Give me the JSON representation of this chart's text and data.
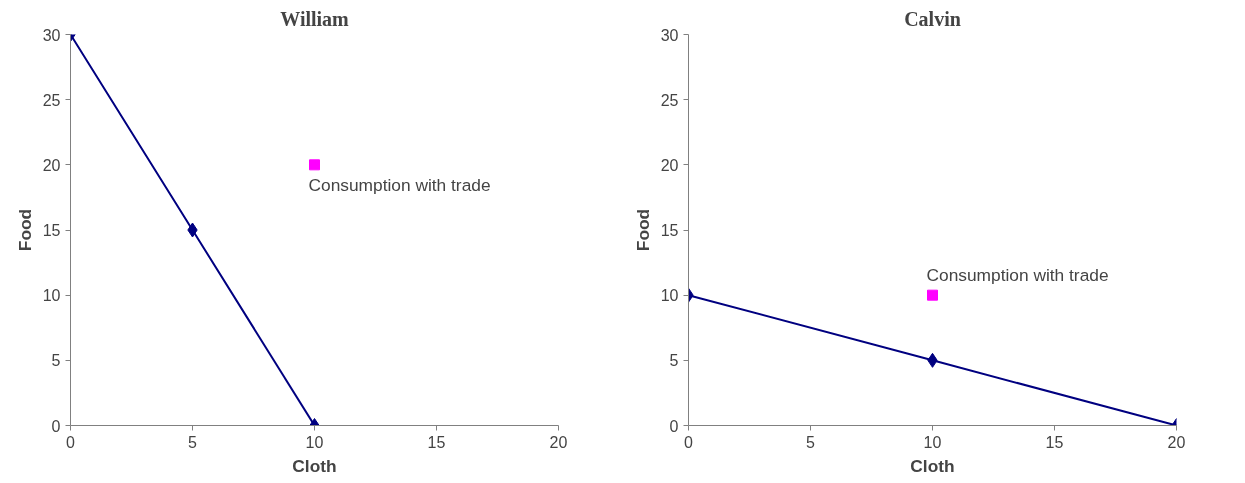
{
  "chart_data": [
    {
      "type": "line",
      "title": "William",
      "xlabel": "Cloth",
      "ylabel": "Food",
      "xlim": [
        0,
        20
      ],
      "xticks": [
        0,
        5,
        10,
        15,
        20
      ],
      "ylim": [
        0,
        30
      ],
      "yticks": [
        0,
        5,
        10,
        15,
        20,
        25,
        30
      ],
      "grid": false,
      "series": [
        {
          "color": "#000080",
          "marker": "diamond",
          "x": [
            0,
            5,
            10
          ],
          "values": [
            30,
            15,
            0
          ]
        },
        {
          "type": "scatter",
          "color": "#ff00ff",
          "marker": "square",
          "x": [
            10
          ],
          "values": [
            20
          ]
        }
      ],
      "annotations": [
        {
          "text": "Consumption with trade",
          "x": 10,
          "y": 20
        }
      ]
    },
    {
      "type": "line",
      "title": "Calvin",
      "xlabel": "Cloth",
      "ylabel": "Food",
      "xlim": [
        0,
        20
      ],
      "xticks": [
        0,
        5,
        10,
        15,
        20
      ],
      "ylim": [
        0,
        30
      ],
      "yticks": [
        0,
        5,
        10,
        15,
        20,
        25,
        30
      ],
      "grid": false,
      "series": [
        {
          "color": "#000080",
          "marker": "diamond",
          "x": [
            0,
            10,
            20
          ],
          "values": [
            10,
            5,
            0
          ]
        },
        {
          "type": "scatter",
          "color": "#ff00ff",
          "marker": "square",
          "x": [
            10
          ],
          "values": [
            10
          ]
        }
      ],
      "annotations": [
        {
          "text": "Consumption with trade",
          "x": 10,
          "y": 10
        }
      ]
    }
  ]
}
